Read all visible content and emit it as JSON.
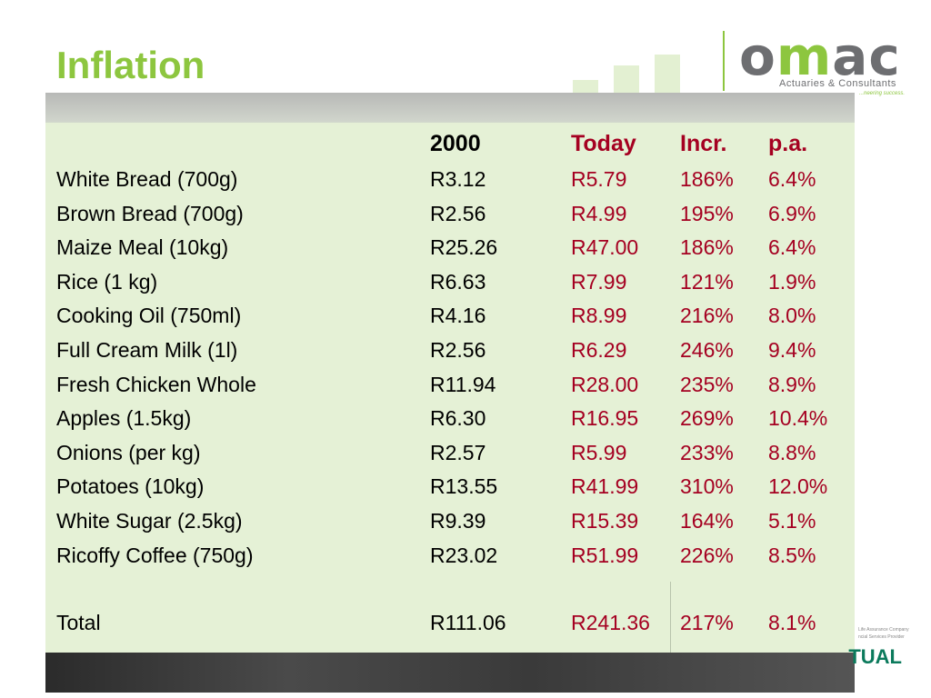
{
  "title": "Inflation",
  "logo": {
    "name_left": "o",
    "name_dots": "m",
    "name_right": "ac",
    "subtitle": "Actuaries & Consultants",
    "tagline": "...neering success."
  },
  "table": {
    "headers": {
      "y2000": "2000",
      "today": "Today",
      "incr": "Incr.",
      "pa": "p.a."
    },
    "rows": [
      {
        "item": "White Bread (700g)",
        "y2000": "R3.12",
        "today": "R5.79",
        "incr": "186%",
        "pa": "6.4%"
      },
      {
        "item": "Brown Bread (700g)",
        "y2000": "R2.56",
        "today": "R4.99",
        "incr": "195%",
        "pa": "6.9%"
      },
      {
        "item": "Maize Meal (10kg)",
        "y2000": "R25.26",
        "today": "R47.00",
        "incr": "186%",
        "pa": "6.4%"
      },
      {
        "item": "Rice (1 kg)",
        "y2000": "R6.63",
        "today": "R7.99",
        "incr": "121%",
        "pa": "1.9%"
      },
      {
        "item": "Cooking Oil (750ml)",
        "y2000": "R4.16",
        "today": "R8.99",
        "incr": "216%",
        "pa": "8.0%"
      },
      {
        "item": "Full Cream Milk (1l)",
        "y2000": "R2.56",
        "today": "R6.29",
        "incr": "246%",
        "pa": "9.4%"
      },
      {
        "item": "Fresh Chicken Whole",
        "y2000": "R11.94",
        "today": "R28.00",
        "incr": "235%",
        "pa": "8.9%"
      },
      {
        "item": "Apples (1.5kg)",
        "y2000": "R6.30",
        "today": "R16.95",
        "incr": "269%",
        "pa": "10.4%"
      },
      {
        "item": "Onions (per kg)",
        "y2000": "R2.57",
        "today": "R5.99",
        "incr": "233%",
        "pa": "8.8%"
      },
      {
        "item": "Potatoes (10kg)",
        "y2000": "R13.55",
        "today": "R41.99",
        "incr": "310%",
        "pa": "12.0%"
      },
      {
        "item": "White Sugar (2.5kg)",
        "y2000": "R9.39",
        "today": "R15.39",
        "incr": "164%",
        "pa": "5.1%"
      },
      {
        "item": "Ricoffy Coffee (750g)",
        "y2000": "R23.02",
        "today": "R51.99",
        "incr": "226%",
        "pa": "8.5%"
      }
    ],
    "total": {
      "item": "Total",
      "y2000": "R111.06",
      "today": "R241.36",
      "incr": "217%",
      "pa": "8.1%"
    }
  },
  "footer": {
    "partial_logo_text": "TUAL",
    "small_line1": "Life Assurance Company",
    "small_line2": "ncial Services Provider"
  },
  "colors": {
    "title_green": "#8dc63f",
    "value_red": "#a50021",
    "logo_grey": "#6d6e71"
  }
}
